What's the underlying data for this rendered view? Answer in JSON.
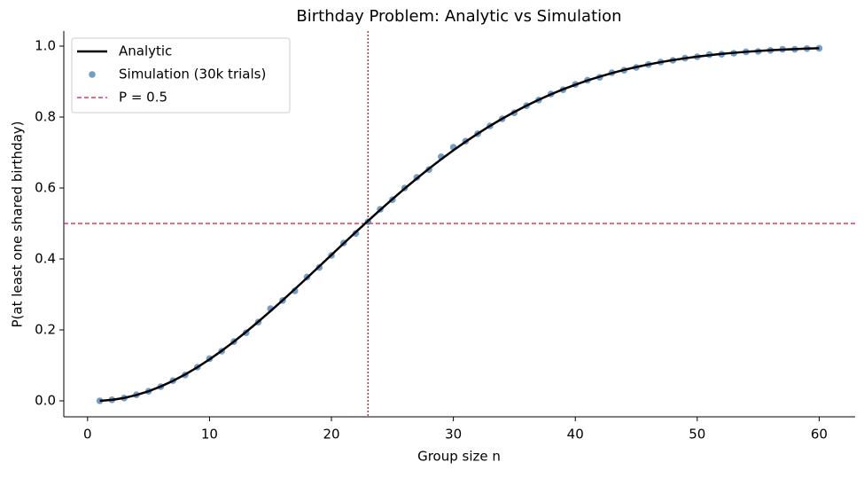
{
  "chart_data": {
    "type": "line",
    "title": "Birthday Problem: Analytic vs Simulation",
    "xlabel": "Group size n",
    "ylabel": "P(at least one shared birthday)",
    "x": [
      1,
      2,
      3,
      4,
      5,
      6,
      7,
      8,
      9,
      10,
      11,
      12,
      13,
      14,
      15,
      16,
      17,
      18,
      19,
      20,
      21,
      22,
      23,
      24,
      25,
      26,
      27,
      28,
      29,
      30,
      31,
      32,
      33,
      34,
      35,
      36,
      37,
      38,
      39,
      40,
      41,
      42,
      43,
      44,
      45,
      46,
      47,
      48,
      49,
      50,
      51,
      52,
      53,
      54,
      55,
      56,
      57,
      58,
      59,
      60
    ],
    "series": [
      {
        "name": "Analytic",
        "color": "#000000",
        "style": "line",
        "values": [
          0,
          0.0027,
          0.0082,
          0.0164,
          0.0271,
          0.0405,
          0.0562,
          0.0743,
          0.0946,
          0.1169,
          0.1411,
          0.167,
          0.1944,
          0.2231,
          0.2529,
          0.2836,
          0.315,
          0.3469,
          0.3791,
          0.4114,
          0.4437,
          0.4757,
          0.5073,
          0.5383,
          0.5687,
          0.5982,
          0.6269,
          0.6545,
          0.681,
          0.7063,
          0.7305,
          0.7533,
          0.775,
          0.7953,
          0.8144,
          0.8322,
          0.8487,
          0.8641,
          0.8782,
          0.8912,
          0.9032,
          0.914,
          0.9239,
          0.9329,
          0.941,
          0.9483,
          0.9548,
          0.9606,
          0.9658,
          0.9704,
          0.9744,
          0.978,
          0.9811,
          0.9839,
          0.9863,
          0.9883,
          0.9901,
          0.9917,
          0.993,
          0.9941
        ]
      },
      {
        "name": "Simulation (30k trials)",
        "color": "#4f86b9",
        "style": "scatter",
        "values": [
          0,
          0.003,
          0.008,
          0.017,
          0.027,
          0.04,
          0.057,
          0.073,
          0.095,
          0.119,
          0.14,
          0.167,
          0.192,
          0.222,
          0.26,
          0.283,
          0.31,
          0.349,
          0.376,
          0.41,
          0.445,
          0.472,
          0.505,
          0.54,
          0.567,
          0.6,
          0.63,
          0.652,
          0.688,
          0.715,
          0.732,
          0.753,
          0.775,
          0.795,
          0.812,
          0.832,
          0.848,
          0.865,
          0.877,
          0.892,
          0.904,
          0.912,
          0.925,
          0.932,
          0.94,
          0.948,
          0.955,
          0.96,
          0.966,
          0.97,
          0.976,
          0.977,
          0.98,
          0.984,
          0.985,
          0.988,
          0.991,
          0.991,
          0.993,
          0.994
        ]
      }
    ],
    "hline": {
      "name": "P = 0.5",
      "value": 0.5,
      "color": "#dc143c"
    },
    "vline": {
      "value": 23,
      "color": "#b22222"
    },
    "xlim": [
      -1.95,
      62.95
    ],
    "ylim": [
      -0.045,
      1.0425
    ],
    "xticks": [
      0,
      10,
      20,
      30,
      40,
      50,
      60
    ],
    "yticks": [
      {
        "value": 0,
        "label": "0.0"
      },
      0.2,
      0.4,
      0.6,
      0.8,
      {
        "value": 1,
        "label": "1.0"
      }
    ],
    "legend": "upper left"
  }
}
